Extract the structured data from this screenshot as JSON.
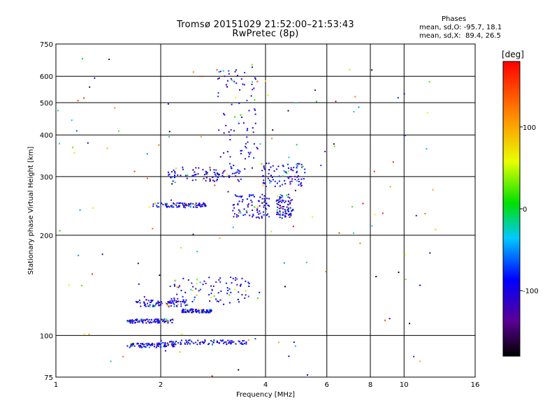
{
  "title_line1": "Tromsø 20151029 21:52:00–21:53:43",
  "title_line2": "RwPretec (8p)",
  "phases": {
    "header": "Phases",
    "line_o": "mean, sd,O: -95.7, 18.1",
    "line_x": "mean, sd,X:  89.4, 26.5"
  },
  "chart_data": {
    "type": "scatter",
    "xlabel": "Frequency [MHz]",
    "ylabel": "Stationary phase Virtual Height [km]",
    "xscale": "log",
    "yscale": "log",
    "xlim": [
      1,
      16
    ],
    "ylim": [
      75,
      750
    ],
    "x_ticks": [
      1,
      2,
      4,
      6,
      8,
      10,
      16
    ],
    "y_ticks": [
      75,
      100,
      200,
      300,
      400,
      500,
      600,
      750
    ],
    "x_gridlines": [
      2,
      4,
      6,
      8,
      10
    ],
    "y_gridlines": [
      100,
      200,
      300,
      400,
      500,
      600
    ],
    "colorbar": {
      "title": "[deg]",
      "ticks": [
        100,
        0,
        -100
      ],
      "range": [
        -180,
        180
      ]
    },
    "traces": [
      {
        "name": "",
        "x_range": [
          1.6,
          2.2
        ],
        "y": [
          92,
          95
        ]
      },
      {
        "name": "",
        "x_range": [
          2.0,
          3.6
        ],
        "y": [
          94,
          97
        ]
      },
      {
        "name": "",
        "x_range": [
          1.6,
          2.2
        ],
        "y": [
          109,
          112
        ]
      },
      {
        "name": "",
        "x_range": [
          1.7,
          2.4
        ],
        "y": [
          122,
          128
        ]
      },
      {
        "name": "",
        "x_range": [
          2.3,
          2.8
        ],
        "y": [
          117,
          120
        ]
      },
      {
        "name": "",
        "x_range": [
          2.1,
          3.6
        ],
        "y": [
          124,
          150
        ]
      },
      {
        "name": "",
        "x_range": [
          1.9,
          2.7
        ],
        "y": [
          242,
          250
        ]
      },
      {
        "name": "",
        "x_range": [
          2.1,
          3.4
        ],
        "y": [
          290,
          320
        ]
      },
      {
        "name": "",
        "x_range": [
          2.9,
          3.8
        ],
        "y": [
          300,
          640
        ]
      },
      {
        "name": "",
        "x_range": [
          3.2,
          4.1
        ],
        "y": [
          225,
          265
        ]
      },
      {
        "name": "",
        "x_range": [
          3.9,
          5.2
        ],
        "y": [
          280,
          330
        ]
      },
      {
        "name": "",
        "x_range": [
          4.3,
          4.8
        ],
        "y": [
          225,
          265
        ]
      }
    ]
  }
}
